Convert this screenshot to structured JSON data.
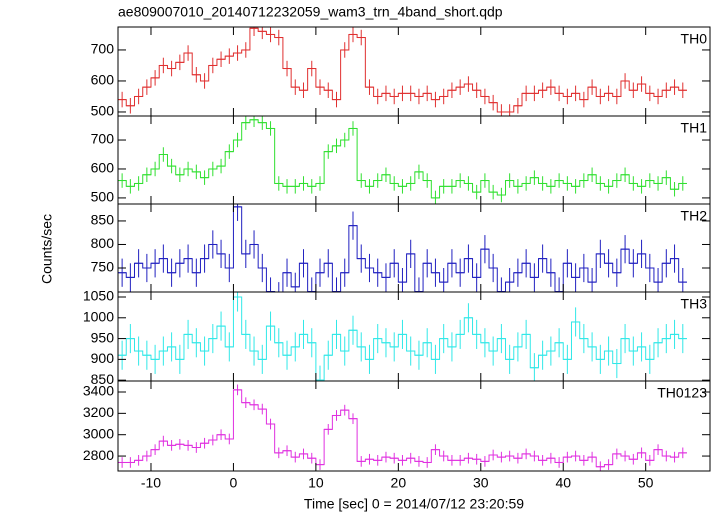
{
  "chart_data": {
    "type": "step",
    "title": "ae809007010_20140712232059_wam3_trn_4band_short.qdp",
    "xlabel": "Time [sec] 0 = 2014/07/12 23:20:59",
    "ylabel": "Counts/sec",
    "xlim": [
      -14,
      57.8
    ],
    "xticks": [
      -10,
      0,
      10,
      20,
      30,
      40,
      50
    ],
    "x": [
      -13.5,
      -12.5,
      -11.5,
      -10.5,
      -9.5,
      -8.5,
      -7.5,
      -6.5,
      -5.5,
      -4.5,
      -3.5,
      -2.5,
      -1.5,
      -0.5,
      0.5,
      1.5,
      2.5,
      3.5,
      4.5,
      5.5,
      6.5,
      7.5,
      8.5,
      9.5,
      10.5,
      11.5,
      12.5,
      13.5,
      14.5,
      15.5,
      16.5,
      17.5,
      18.5,
      19.5,
      20.5,
      21.5,
      22.5,
      23.5,
      24.5,
      25.5,
      26.5,
      27.5,
      28.5,
      29.5,
      30.5,
      31.5,
      32.5,
      33.5,
      34.5,
      35.5,
      36.5,
      37.5,
      38.5,
      39.5,
      40.5,
      41.5,
      42.5,
      43.5,
      44.5,
      45.5,
      46.5,
      47.5,
      48.5,
      49.5,
      50.5,
      51.5,
      52.5,
      53.5,
      54.5
    ],
    "panels": [
      {
        "name": "TH0",
        "color": "#e03030",
        "error": 25,
        "ylim": [
          487,
          774
        ],
        "yticks": [
          500,
          600,
          700
        ],
        "values": [
          540,
          520,
          550,
          580,
          610,
          650,
          640,
          660,
          690,
          620,
          600,
          650,
          670,
          680,
          690,
          700,
          770,
          760,
          750,
          740,
          640,
          580,
          570,
          640,
          580,
          570,
          540,
          700,
          750,
          740,
          580,
          550,
          560,
          550,
          560,
          560,
          550,
          560,
          540,
          550,
          570,
          580,
          590,
          570,
          550,
          530,
          500,
          500,
          520,
          560,
          560,
          570,
          580,
          560,
          550,
          560,
          540,
          580,
          550,
          560,
          550,
          600,
          570,
          590,
          560,
          550,
          570,
          580,
          570
        ]
      },
      {
        "name": "TH1",
        "color": "#30e030",
        "error": 25,
        "ylim": [
          479,
          783
        ],
        "yticks": [
          500,
          600,
          700
        ],
        "values": [
          560,
          540,
          550,
          580,
          600,
          650,
          610,
          580,
          600,
          590,
          570,
          600,
          610,
          660,
          700,
          760,
          770,
          760,
          740,
          550,
          540,
          540,
          550,
          540,
          550,
          660,
          680,
          700,
          740,
          560,
          540,
          560,
          580,
          550,
          540,
          550,
          590,
          560,
          500,
          540,
          540,
          560,
          550,
          520,
          560,
          520,
          510,
          560,
          540,
          550,
          570,
          550,
          540,
          560,
          550,
          540,
          560,
          580,
          550,
          540,
          560,
          580,
          550,
          540,
          560,
          550,
          570,
          530,
          550
        ]
      },
      {
        "name": "TH2",
        "color": "#2020c0",
        "error": 30,
        "ylim": [
          699,
          886
        ],
        "yticks": [
          750,
          800,
          850
        ],
        "values": [
          740,
          730,
          760,
          750,
          760,
          770,
          740,
          760,
          770,
          740,
          770,
          800,
          780,
          750,
          880,
          780,
          800,
          750,
          700,
          690,
          740,
          710,
          760,
          700,
          740,
          760,
          700,
          740,
          840,
          770,
          750,
          740,
          730,
          760,
          720,
          780,
          700,
          760,
          740,
          720,
          760,
          740,
          770,
          730,
          790,
          750,
          700,
          720,
          740,
          760,
          730,
          770,
          740,
          700,
          760,
          730,
          750,
          720,
          780,
          760,
          740,
          790,
          760,
          780,
          750,
          720,
          760,
          770,
          720
        ]
      },
      {
        "name": "TH3",
        "color": "#30e8e8",
        "error": 35,
        "ylim": [
          848,
          1062
        ],
        "yticks": [
          850,
          900,
          950,
          1000,
          1050
        ],
        "values": [
          910,
          950,
          920,
          910,
          900,
          920,
          930,
          900,
          960,
          940,
          920,
          950,
          980,
          930,
          1050,
          960,
          920,
          900,
          980,
          940,
          910,
          930,
          960,
          940,
          850,
          910,
          960,
          920,
          970,
          930,
          900,
          950,
          940,
          930,
          960,
          920,
          910,
          940,
          900,
          950,
          930,
          960,
          1000,
          960,
          940,
          920,
          950,
          900,
          930,
          960,
          880,
          910,
          920,
          940,
          900,
          990,
          950,
          930,
          900,
          920,
          890,
          950,
          920,
          930,
          900,
          940,
          950,
          960,
          950
        ]
      },
      {
        "name": "TH0123",
        "color": "#e030e0",
        "error": 50,
        "ylim": [
          2660,
          3503
        ],
        "yticks": [
          2800,
          3000,
          3200,
          3400
        ],
        "values": [
          2740,
          2740,
          2760,
          2800,
          2860,
          2940,
          2900,
          2910,
          2900,
          2880,
          2920,
          2950,
          3000,
          2960,
          3420,
          3300,
          3280,
          3240,
          3100,
          2830,
          2850,
          2790,
          2820,
          2780,
          2720,
          3050,
          3180,
          3230,
          3150,
          2750,
          2770,
          2760,
          2790,
          2780,
          2760,
          2780,
          2750,
          2740,
          2860,
          2800,
          2760,
          2760,
          2780,
          2770,
          2750,
          2810,
          2790,
          2800,
          2780,
          2820,
          2800,
          2760,
          2780,
          2740,
          2790,
          2800,
          2760,
          2790,
          2700,
          2720,
          2820,
          2800,
          2770,
          2830,
          2760,
          2860,
          2800,
          2790,
          2830
        ]
      }
    ]
  }
}
